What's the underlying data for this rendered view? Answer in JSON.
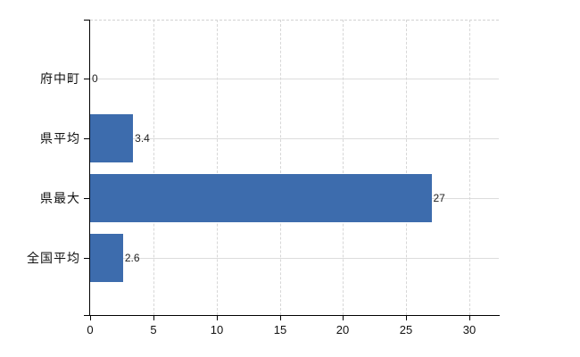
{
  "chart_data": {
    "type": "bar",
    "orientation": "horizontal",
    "title": "",
    "categories": [
      "府中町",
      "県平均",
      "県最大",
      "全国平均"
    ],
    "values": [
      0,
      3.4,
      27,
      2.6
    ],
    "value_labels": [
      "0",
      "3.4",
      "27",
      "2.6"
    ],
    "x_ticks": [
      0,
      5,
      10,
      15,
      20,
      25,
      30
    ],
    "x_tick_labels": [
      "0",
      "5",
      "10",
      "15",
      "20",
      "25",
      "30"
    ],
    "xlim": [
      0,
      32.4
    ],
    "xlabel": "",
    "ylabel": "",
    "grid": true,
    "legend": false,
    "colors": {
      "bar": "#3d6cad",
      "axis": "#000000",
      "grid": "#d9d9d9",
      "text": "#111111",
      "background": "#ffffff"
    }
  }
}
